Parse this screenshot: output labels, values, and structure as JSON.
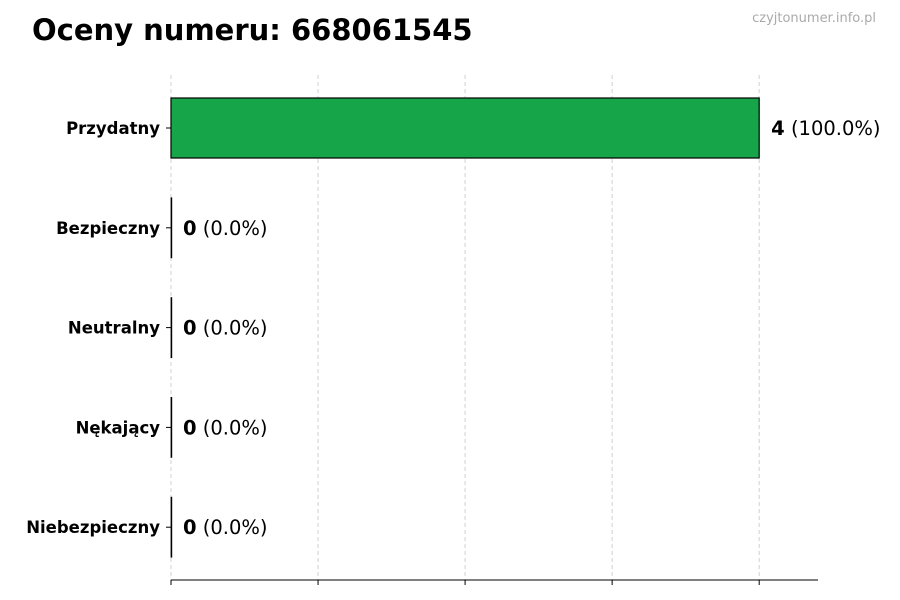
{
  "chart_data": {
    "type": "bar",
    "orientation": "horizontal",
    "title": "Oceny numeru: 668061545",
    "watermark": "czyjtonumer.info.pl",
    "categories": [
      "Przydatny",
      "Bezpieczny",
      "Neutralny",
      "Nękający",
      "Niebezpieczny"
    ],
    "values": [
      4,
      0,
      0,
      0,
      0
    ],
    "percent_labels": [
      "(100.0%)",
      "(0.0%)",
      "(0.0%)",
      "(0.0%)",
      "(0.0%)"
    ],
    "xlabel": "",
    "ylabel": "",
    "xlim": [
      0,
      4.4
    ],
    "xticks": [
      0,
      1,
      2,
      3,
      4
    ],
    "xtick_labels_visible": false,
    "grid": "vertical dashed",
    "colors": {
      "bar": "#17a54a",
      "edge": "#000000",
      "grid": "#d0d0d0"
    }
  }
}
